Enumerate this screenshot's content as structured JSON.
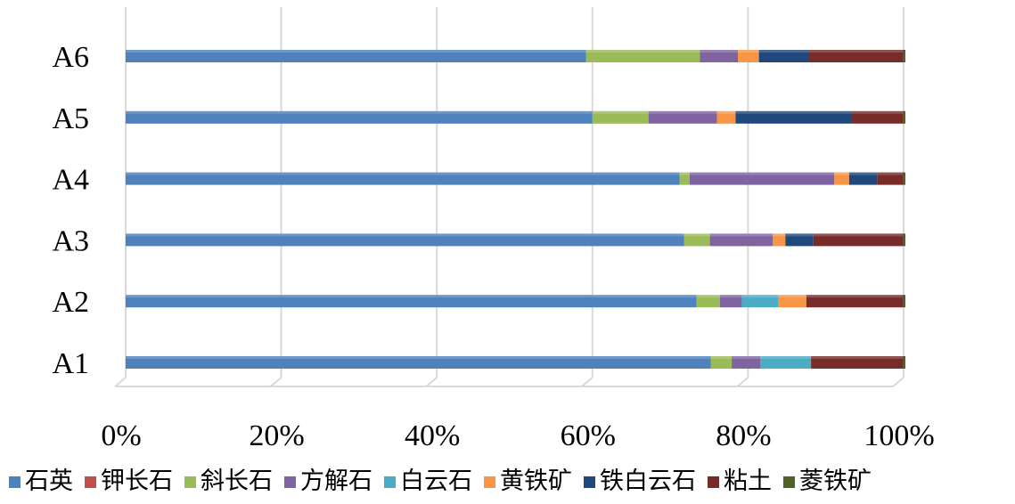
{
  "chart_data": {
    "type": "bar",
    "orientation": "horizontal",
    "stacking": "percent",
    "categories": [
      "A1",
      "A2",
      "A3",
      "A4",
      "A5",
      "A6"
    ],
    "series": [
      {
        "name": "石英",
        "color": "#4F81BD",
        "values": [
          75.2,
          73.4,
          71.8,
          71.2,
          60.0,
          59.2
        ]
      },
      {
        "name": "钾长石",
        "color": "#C0504D",
        "values": [
          0,
          0,
          0,
          0,
          0,
          0
        ]
      },
      {
        "name": "斜长石",
        "color": "#9BBB59",
        "values": [
          2.7,
          3.0,
          3.3,
          1.3,
          7.2,
          14.6
        ]
      },
      {
        "name": "方解石",
        "color": "#8064A2",
        "values": [
          3.7,
          2.8,
          8.1,
          18.6,
          8.8,
          4.9
        ]
      },
      {
        "name": "白云石",
        "color": "#4BACC6",
        "values": [
          6.5,
          4.7,
          0,
          0,
          0,
          0
        ]
      },
      {
        "name": "黄铁矿",
        "color": "#F79646",
        "values": [
          0,
          3.6,
          1.6,
          1.9,
          2.4,
          2.7
        ]
      },
      {
        "name": "铁白云石",
        "color": "#1F497D",
        "values": [
          0,
          0,
          3.6,
          3.6,
          14.9,
          6.4
        ]
      },
      {
        "name": "粘土",
        "color": "#772C2A",
        "values": [
          11.9,
          12.5,
          11.6,
          3.4,
          6.7,
          12.2
        ]
      },
      {
        "name": "菱铁矿",
        "color": "#4F6228",
        "values": [
          0,
          0,
          0,
          0,
          0,
          0
        ]
      }
    ],
    "x_ticks": [
      "0%",
      "20%",
      "40%",
      "60%",
      "80%",
      "100%"
    ],
    "xlim": [
      0,
      100
    ],
    "grid": "vertical",
    "legend_position": "bottom"
  }
}
